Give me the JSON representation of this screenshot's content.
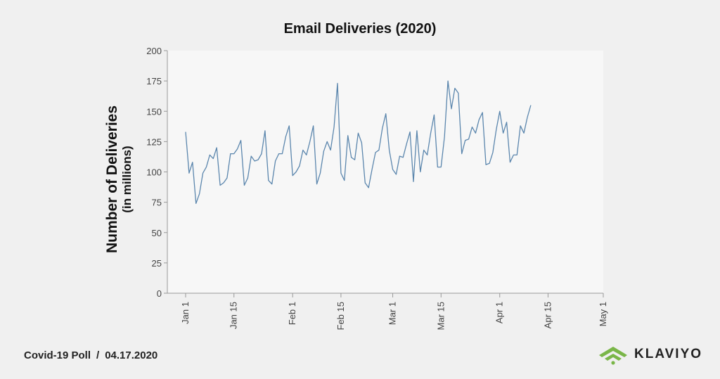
{
  "footer": {
    "poll": "Covid-19 Poll",
    "separator": "/",
    "date": "04.17.2020"
  },
  "logo": {
    "text": "KLAVIYO",
    "icon": "klaviyo-wifi-icon",
    "icon_color": "#7ab648"
  },
  "colors": {
    "line": "#5b86ad",
    "plot_bg": "#f7f7f7",
    "page_bg": "#f0f0f0"
  },
  "chart_data": {
    "type": "line",
    "title": "Email Deliveries (2020)",
    "ylabel": "Number of Deliveries",
    "ylabel_sub": "(in millions)",
    "xlabel": "",
    "ylim": [
      0,
      200
    ],
    "yticks": [
      0,
      25,
      50,
      75,
      100,
      125,
      150,
      175,
      200
    ],
    "xlim": [
      "2020-01-01",
      "2020-05-01"
    ],
    "xticks": [
      {
        "date": "2020-01-01",
        "label": "Jan 1"
      },
      {
        "date": "2020-01-15",
        "label": "Jan 15"
      },
      {
        "date": "2020-02-01",
        "label": "Feb 1"
      },
      {
        "date": "2020-02-15",
        "label": "Feb 15"
      },
      {
        "date": "2020-03-01",
        "label": "Mar 1"
      },
      {
        "date": "2020-03-15",
        "label": "Mar 15"
      },
      {
        "date": "2020-04-01",
        "label": "Apr 1"
      },
      {
        "date": "2020-04-15",
        "label": "Apr 15"
      },
      {
        "date": "2020-05-01",
        "label": "May 1"
      }
    ],
    "grid": false,
    "series": [
      {
        "values": [
          {
            "x": "2020-01-01",
            "y": 133
          },
          {
            "x": "2020-01-02",
            "y": 99
          },
          {
            "x": "2020-01-03",
            "y": 108
          },
          {
            "x": "2020-01-04",
            "y": 74
          },
          {
            "x": "2020-01-05",
            "y": 82
          },
          {
            "x": "2020-01-06",
            "y": 99
          },
          {
            "x": "2020-01-07",
            "y": 104
          },
          {
            "x": "2020-01-08",
            "y": 114
          },
          {
            "x": "2020-01-09",
            "y": 111
          },
          {
            "x": "2020-01-10",
            "y": 120
          },
          {
            "x": "2020-01-11",
            "y": 89
          },
          {
            "x": "2020-01-12",
            "y": 91
          },
          {
            "x": "2020-01-13",
            "y": 95
          },
          {
            "x": "2020-01-14",
            "y": 115
          },
          {
            "x": "2020-01-15",
            "y": 115
          },
          {
            "x": "2020-01-16",
            "y": 119
          },
          {
            "x": "2020-01-17",
            "y": 126
          },
          {
            "x": "2020-01-18",
            "y": 89
          },
          {
            "x": "2020-01-19",
            "y": 95
          },
          {
            "x": "2020-01-20",
            "y": 113
          },
          {
            "x": "2020-01-21",
            "y": 109
          },
          {
            "x": "2020-01-22",
            "y": 110
          },
          {
            "x": "2020-01-23",
            "y": 115
          },
          {
            "x": "2020-01-24",
            "y": 134
          },
          {
            "x": "2020-01-25",
            "y": 93
          },
          {
            "x": "2020-01-26",
            "y": 90
          },
          {
            "x": "2020-01-27",
            "y": 109
          },
          {
            "x": "2020-01-28",
            "y": 115
          },
          {
            "x": "2020-01-29",
            "y": 115
          },
          {
            "x": "2020-01-30",
            "y": 129
          },
          {
            "x": "2020-01-31",
            "y": 138
          },
          {
            "x": "2020-02-01",
            "y": 97
          },
          {
            "x": "2020-02-02",
            "y": 100
          },
          {
            "x": "2020-02-03",
            "y": 105
          },
          {
            "x": "2020-02-04",
            "y": 118
          },
          {
            "x": "2020-02-05",
            "y": 114
          },
          {
            "x": "2020-02-06",
            "y": 125
          },
          {
            "x": "2020-02-07",
            "y": 138
          },
          {
            "x": "2020-02-08",
            "y": 90
          },
          {
            "x": "2020-02-09",
            "y": 99
          },
          {
            "x": "2020-02-10",
            "y": 117
          },
          {
            "x": "2020-02-11",
            "y": 125
          },
          {
            "x": "2020-02-12",
            "y": 118
          },
          {
            "x": "2020-02-13",
            "y": 137
          },
          {
            "x": "2020-02-14",
            "y": 173
          },
          {
            "x": "2020-02-15",
            "y": 99
          },
          {
            "x": "2020-02-16",
            "y": 93
          },
          {
            "x": "2020-02-17",
            "y": 130
          },
          {
            "x": "2020-02-18",
            "y": 112
          },
          {
            "x": "2020-02-19",
            "y": 110
          },
          {
            "x": "2020-02-20",
            "y": 132
          },
          {
            "x": "2020-02-21",
            "y": 124
          },
          {
            "x": "2020-02-22",
            "y": 91
          },
          {
            "x": "2020-02-23",
            "y": 87
          },
          {
            "x": "2020-02-24",
            "y": 102
          },
          {
            "x": "2020-02-25",
            "y": 116
          },
          {
            "x": "2020-02-26",
            "y": 118
          },
          {
            "x": "2020-02-27",
            "y": 136
          },
          {
            "x": "2020-02-28",
            "y": 148
          },
          {
            "x": "2020-02-29",
            "y": 118
          },
          {
            "x": "2020-03-01",
            "y": 102
          },
          {
            "x": "2020-03-02",
            "y": 98
          },
          {
            "x": "2020-03-03",
            "y": 113
          },
          {
            "x": "2020-03-04",
            "y": 112
          },
          {
            "x": "2020-03-05",
            "y": 123
          },
          {
            "x": "2020-03-06",
            "y": 133
          },
          {
            "x": "2020-03-07",
            "y": 92
          },
          {
            "x": "2020-03-08",
            "y": 134
          },
          {
            "x": "2020-03-09",
            "y": 100
          },
          {
            "x": "2020-03-10",
            "y": 118
          },
          {
            "x": "2020-03-11",
            "y": 114
          },
          {
            "x": "2020-03-12",
            "y": 132
          },
          {
            "x": "2020-03-13",
            "y": 147
          },
          {
            "x": "2020-03-14",
            "y": 104
          },
          {
            "x": "2020-03-15",
            "y": 104
          },
          {
            "x": "2020-03-16",
            "y": 129
          },
          {
            "x": "2020-03-17",
            "y": 175
          },
          {
            "x": "2020-03-18",
            "y": 152
          },
          {
            "x": "2020-03-19",
            "y": 169
          },
          {
            "x": "2020-03-20",
            "y": 165
          },
          {
            "x": "2020-03-21",
            "y": 115
          },
          {
            "x": "2020-03-22",
            "y": 126
          },
          {
            "x": "2020-03-23",
            "y": 127
          },
          {
            "x": "2020-03-24",
            "y": 137
          },
          {
            "x": "2020-03-25",
            "y": 132
          },
          {
            "x": "2020-03-26",
            "y": 143
          },
          {
            "x": "2020-03-27",
            "y": 149
          },
          {
            "x": "2020-03-28",
            "y": 106
          },
          {
            "x": "2020-03-29",
            "y": 107
          },
          {
            "x": "2020-03-30",
            "y": 116
          },
          {
            "x": "2020-03-31",
            "y": 135
          },
          {
            "x": "2020-04-01",
            "y": 150
          },
          {
            "x": "2020-04-02",
            "y": 132
          },
          {
            "x": "2020-04-03",
            "y": 141
          },
          {
            "x": "2020-04-04",
            "y": 108
          },
          {
            "x": "2020-04-05",
            "y": 114
          },
          {
            "x": "2020-04-06",
            "y": 114
          },
          {
            "x": "2020-04-07",
            "y": 138
          },
          {
            "x": "2020-04-08",
            "y": 132
          },
          {
            "x": "2020-04-09",
            "y": 145
          },
          {
            "x": "2020-04-10",
            "y": 155
          }
        ]
      }
    ]
  }
}
